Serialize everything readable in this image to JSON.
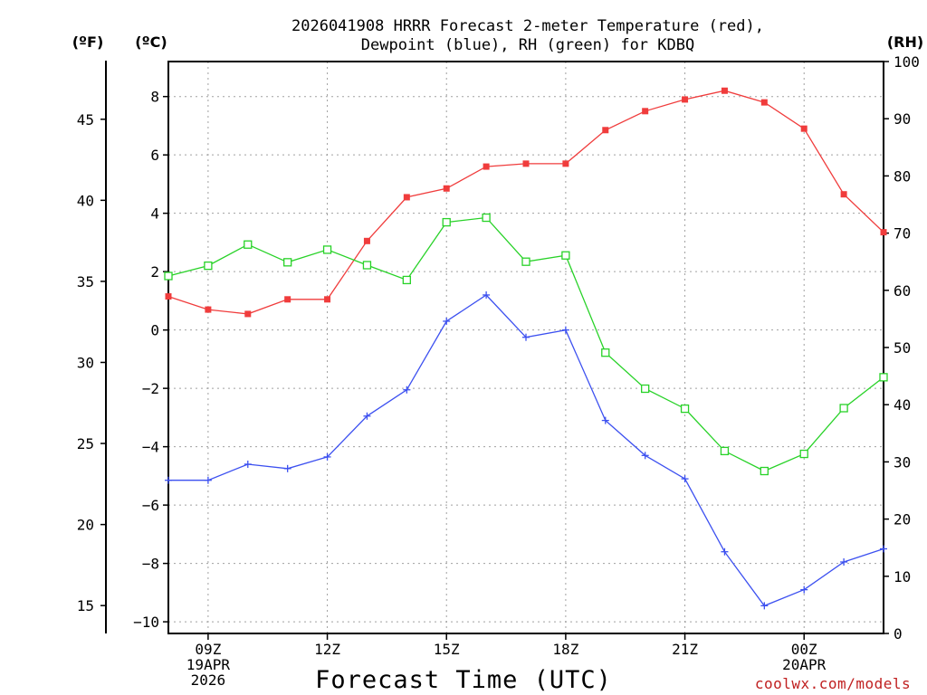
{
  "header": {
    "title_line1": "2026041908 HRRR Forecast 2-meter Temperature (red),",
    "title_line2": "Dewpoint (blue), RH (green) for KDBQ",
    "unit_f": "(ºF)",
    "unit_c": "(ºC)",
    "unit_rh": "(RH)"
  },
  "footer": {
    "xlabel": "Forecast Time (UTC)",
    "credit": "coolwx.com/models"
  },
  "colors": {
    "temperature": "#f03c3c",
    "dewpoint": "#3c50f0",
    "rh": "#28d228",
    "grid": "#a0a0a0",
    "axis": "#000000"
  },
  "chart_data": {
    "type": "line",
    "title": "2026041908 HRRR Forecast 2-meter Temperature (red), Dewpoint (blue), RH (green) for KDBQ",
    "xlabel": "Forecast Time (UTC)",
    "x_hours": [
      8,
      9,
      10,
      11,
      12,
      13,
      14,
      15,
      16,
      17,
      18,
      19,
      20,
      21,
      22,
      23,
      24,
      25,
      26
    ],
    "xlim": [
      8,
      26
    ],
    "x_ticks": [
      {
        "hour": 9,
        "lines": [
          "09Z",
          "19APR",
          "2026"
        ]
      },
      {
        "hour": 12,
        "lines": [
          "12Z"
        ]
      },
      {
        "hour": 15,
        "lines": [
          "15Z"
        ]
      },
      {
        "hour": 18,
        "lines": [
          "18Z"
        ]
      },
      {
        "hour": 21,
        "lines": [
          "21Z"
        ]
      },
      {
        "hour": 24,
        "lines": [
          "00Z",
          "20APR"
        ]
      }
    ],
    "celsius_axis": {
      "ylim": [
        -10.4,
        9.2
      ],
      "ticks": [
        -10,
        -8,
        -6,
        -4,
        -2,
        0,
        2,
        4,
        6,
        8
      ],
      "tick_labels": [
        "−10",
        "−8",
        "−6",
        "−4",
        "−2",
        "0",
        "2",
        "4",
        "6",
        "8"
      ]
    },
    "fahrenheit_axis": {
      "ticks": [
        15,
        20,
        25,
        30,
        35,
        40,
        45
      ],
      "tick_labels": [
        "15",
        "20",
        "25",
        "30",
        "35",
        "40",
        "45"
      ]
    },
    "rh_axis": {
      "ylim": [
        0,
        100
      ],
      "ticks": [
        0,
        10,
        20,
        30,
        40,
        50,
        60,
        70,
        80,
        90,
        100
      ],
      "tick_labels": [
        "0",
        "10",
        "20",
        "30",
        "40",
        "50",
        "60",
        "70",
        "80",
        "90",
        "100"
      ]
    },
    "series": [
      {
        "name": "Temperature (°C)",
        "axis": "celsius",
        "marker": "filled-square",
        "values": [
          1.15,
          0.7,
          0.55,
          1.05,
          1.05,
          3.05,
          4.55,
          4.85,
          5.6,
          5.7,
          5.7,
          6.85,
          7.5,
          7.9,
          8.2,
          7.8,
          6.9,
          4.65,
          3.35
        ]
      },
      {
        "name": "Dewpoint (°C)",
        "axis": "celsius",
        "marker": "plus",
        "values": [
          -5.15,
          -5.15,
          -4.6,
          -4.75,
          -4.35,
          -2.95,
          -2.05,
          0.3,
          1.2,
          -0.25,
          0.0,
          -3.1,
          -4.3,
          -5.1,
          -7.6,
          -9.45,
          -8.9,
          -7.95,
          -7.5
        ]
      },
      {
        "name": "RH (%)",
        "axis": "rh",
        "marker": "open-square",
        "values": [
          62.5,
          64.3,
          68.0,
          64.9,
          67.1,
          64.4,
          61.8,
          71.9,
          72.7,
          65.0,
          66.1,
          49.1,
          42.8,
          39.3,
          31.9,
          28.4,
          31.4,
          39.4,
          44.8
        ]
      }
    ]
  }
}
